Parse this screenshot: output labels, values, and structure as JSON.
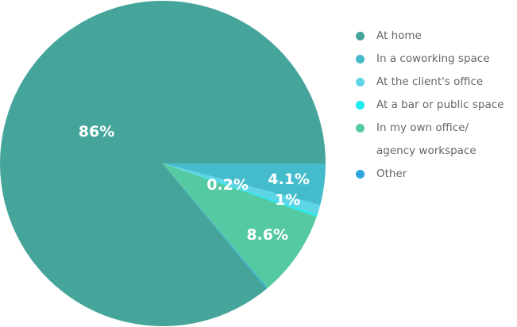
{
  "chart_data": {
    "type": "pie",
    "categories": [
      "At home",
      "In a coworking space",
      "At the client's office",
      "At a bar or public space",
      "In my own office/\nagency workspace",
      "Other"
    ],
    "values": [
      86,
      4.1,
      1,
      0.2,
      8.6,
      0.1
    ],
    "value_labels": [
      "86%",
      "4.1%",
      "1%",
      "0.2%",
      "8.6%",
      null
    ],
    "colors": [
      "#46a59a",
      "#45bccc",
      "#5ed5e4",
      "#1fe9f3",
      "#55c9a2",
      "#2ba8df"
    ]
  }
}
